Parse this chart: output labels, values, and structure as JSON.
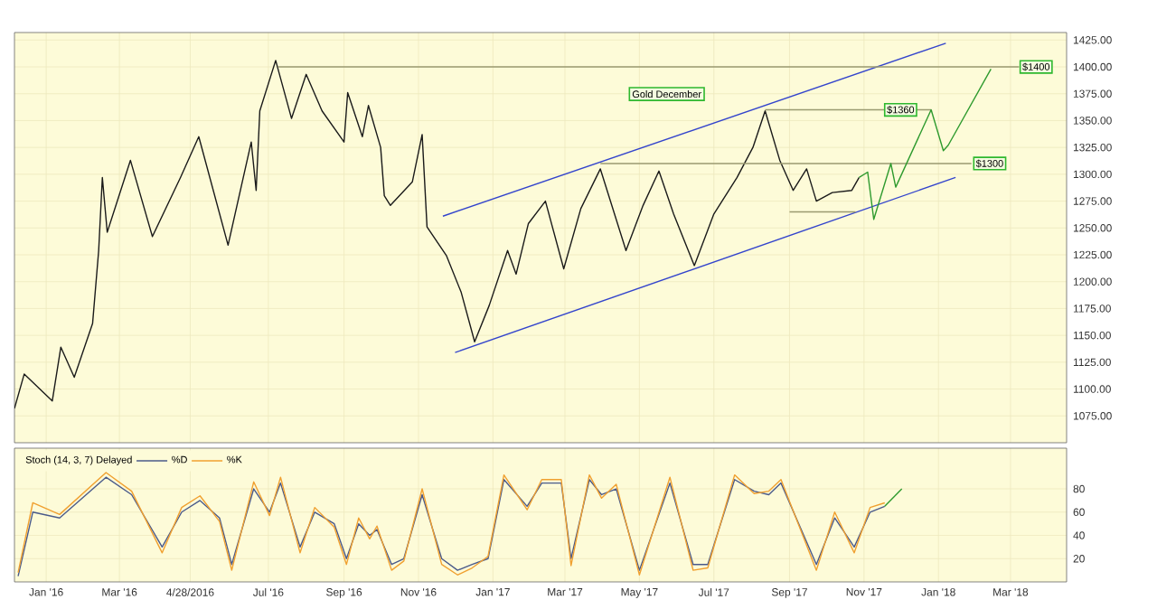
{
  "chart_data": [
    {
      "type": "line",
      "annotations": [
        "Gold  December",
        {
          "text": "$1400",
          "x": "2018-03-22",
          "y": 1400
        },
        {
          "text": "$1360",
          "x": "2017-12-01",
          "y": 1360
        },
        {
          "text": "$1300",
          "x": "2018-02-12",
          "y": 1310
        }
      ],
      "series": [
        {
          "color": "#1a1a1a",
          "x": [
            "2015-12-06",
            "2015-12-14",
            "2016-01-06",
            "2016-01-13",
            "2016-01-24",
            "2016-02-08",
            "2016-02-13",
            "2016-02-16",
            "2016-02-20",
            "2016-03-10",
            "2016-03-28",
            "2016-04-20",
            "2016-05-05",
            "2016-05-29",
            "2016-06-17",
            "2016-06-21",
            "2016-06-24",
            "2016-07-07",
            "2016-07-20",
            "2016-08-01",
            "2016-08-14",
            "2016-09-01",
            "2016-09-04",
            "2016-09-16",
            "2016-09-21",
            "2016-10-01",
            "2016-10-04",
            "2016-10-09",
            "2016-10-27",
            "2016-11-04",
            "2016-11-08",
            "2016-11-24",
            "2016-12-06",
            "2016-12-17",
            "2016-12-29",
            "2017-01-13",
            "2017-01-20",
            "2017-01-30",
            "2017-02-13",
            "2017-02-28",
            "2017-03-14",
            "2017-03-30",
            "2017-04-20",
            "2017-05-04",
            "2017-05-17",
            "2017-05-29",
            "2017-06-15",
            "2017-07-01",
            "2017-07-20",
            "2017-08-02",
            "2017-08-12",
            "2017-08-24",
            "2017-09-04",
            "2017-09-15",
            "2017-09-23",
            "2017-10-06",
            "2017-10-22",
            "2017-10-28"
          ],
          "values": [
            1082,
            1114,
            1089,
            1139,
            1111,
            1161,
            1229,
            1297,
            1246,
            1313,
            1242,
            1297,
            1335,
            1234,
            1330,
            1285,
            1359,
            1406,
            1352,
            1393,
            1359,
            1330,
            1376,
            1335,
            1364,
            1325,
            1280,
            1271,
            1293,
            1337,
            1251,
            1224,
            1190,
            1144,
            1178,
            1229,
            1207,
            1254,
            1275,
            1212,
            1268,
            1305,
            1229,
            1271,
            1303,
            1263,
            1215,
            1263,
            1297,
            1325,
            1359,
            1313,
            1285,
            1305,
            1275,
            1283,
            1285,
            1297
          ]
        },
        {
          "color": "#3344cc",
          "x": [
            "2016-11-21",
            "2018-01-07"
          ],
          "values": [
            1261,
            1422
          ]
        },
        {
          "color": "#3344cc",
          "x": [
            "2016-12-01",
            "2018-01-15"
          ],
          "values": [
            1134,
            1297
          ]
        },
        {
          "color": "#9a9a70",
          "x": [
            "2016-07-09",
            "2018-03-08"
          ],
          "values": [
            1400,
            1400
          ]
        },
        {
          "color": "#9a9a70",
          "x": [
            "2017-08-12",
            "2017-12-26"
          ],
          "values": [
            1360,
            1360
          ]
        },
        {
          "color": "#9a9a70",
          "x": [
            "2017-03-30",
            "2018-01-28"
          ],
          "values": [
            1310,
            1310
          ]
        },
        {
          "color": "#9a9a70",
          "x": [
            "2017-09-01",
            "2017-10-25"
          ],
          "values": [
            1265,
            1265
          ]
        },
        {
          "color": "#2e9a2e",
          "x": [
            "2017-10-28",
            "2017-11-04",
            "2017-11-09",
            "2017-11-23",
            "2017-11-27",
            "2017-12-26",
            "2018-01-05",
            "2018-01-09",
            "2018-02-13"
          ],
          "values": [
            1297,
            1302,
            1258,
            1310,
            1288,
            1360,
            1322,
            1327,
            1398
          ]
        }
      ],
      "xlim": [
        "2015-12-06",
        "2018-04-16"
      ],
      "xticks": [
        {
          "value": "2016-01-01",
          "label": null
        },
        {
          "value": "2016-03-01",
          "label": null
        },
        {
          "value": "2016-04-28",
          "label": null
        },
        {
          "value": "2016-07-01",
          "label": null
        },
        {
          "value": "2016-09-01",
          "label": null
        },
        {
          "value": "2016-11-01",
          "label": null
        },
        {
          "value": "2017-01-01",
          "label": null
        },
        {
          "value": "2017-03-01",
          "label": null
        },
        {
          "value": "2017-05-01",
          "label": null
        },
        {
          "value": "2017-07-01",
          "label": null
        },
        {
          "value": "2017-09-01",
          "label": null
        },
        {
          "value": "2017-11-01",
          "label": null
        },
        {
          "value": "2018-01-01",
          "label": null
        },
        {
          "value": "2018-03-01",
          "label": null
        }
      ],
      "ylim": [
        1050,
        1432
      ],
      "yticks": [
        {
          "value": 1075,
          "label": "1075.00"
        },
        {
          "value": 1100,
          "label": "1100.00"
        },
        {
          "value": 1125,
          "label": "1125.00"
        },
        {
          "value": 1150,
          "label": "1150.00"
        },
        {
          "value": 1175,
          "label": "1175.00"
        },
        {
          "value": 1200,
          "label": "1200.00"
        },
        {
          "value": 1225,
          "label": "1225.00"
        },
        {
          "value": 1250,
          "label": "1250.00"
        },
        {
          "value": 1275,
          "label": "1275.00"
        },
        {
          "value": 1300,
          "label": "1300.00"
        },
        {
          "value": 1325,
          "label": "1325.00"
        },
        {
          "value": 1350,
          "label": "1350.00"
        },
        {
          "value": 1375,
          "label": "1375.00"
        },
        {
          "value": 1400,
          "label": "1400.00"
        },
        {
          "value": 1425,
          "label": "1425.00"
        }
      ],
      "tick_labels": "y",
      "grid": true
    },
    {
      "type": "line",
      "legend_title": "Stoch (14, 3, 7) Delayed",
      "legend": "top left",
      "x": [
        "2015-12-09",
        "2015-12-21",
        "2016-01-12",
        "2016-02-19",
        "2016-03-11",
        "2016-04-05",
        "2016-04-21",
        "2016-05-06",
        "2016-05-22",
        "2016-06-01",
        "2016-06-19",
        "2016-07-02",
        "2016-07-11",
        "2016-07-27",
        "2016-08-08",
        "2016-08-24",
        "2016-09-03",
        "2016-09-13",
        "2016-09-22",
        "2016-09-28",
        "2016-10-10",
        "2016-10-20",
        "2016-11-04",
        "2016-11-20",
        "2016-12-03",
        "2016-12-15",
        "2016-12-28",
        "2017-01-10",
        "2017-01-29",
        "2017-02-10",
        "2017-02-26",
        "2017-03-06",
        "2017-03-21",
        "2017-03-31",
        "2017-04-12",
        "2017-05-01",
        "2017-05-26",
        "2017-06-14",
        "2017-06-26",
        "2017-07-18",
        "2017-08-03",
        "2017-08-15",
        "2017-08-25",
        "2017-09-23",
        "2017-10-08",
        "2017-10-24",
        "2017-11-06",
        "2017-11-18"
      ],
      "series": [
        {
          "name": "%D",
          "color": "#4a5a8a",
          "values": [
            5,
            60,
            55,
            90,
            75,
            30,
            60,
            70,
            55,
            15,
            80,
            60,
            85,
            30,
            60,
            50,
            20,
            50,
            40,
            45,
            15,
            20,
            75,
            20,
            10,
            15,
            20,
            88,
            65,
            85,
            85,
            20,
            88,
            75,
            80,
            10,
            85,
            15,
            15,
            88,
            78,
            75,
            85,
            15,
            55,
            30,
            60,
            65
          ]
        },
        {
          "name": "%K",
          "color": "#f0a030",
          "values": [
            8,
            68,
            58,
            94,
            78,
            25,
            64,
            74,
            52,
            10,
            86,
            57,
            90,
            25,
            64,
            47,
            15,
            55,
            37,
            48,
            10,
            18,
            80,
            15,
            6,
            12,
            22,
            92,
            62,
            88,
            88,
            14,
            92,
            72,
            84,
            6,
            90,
            10,
            12,
            92,
            76,
            78,
            88,
            10,
            60,
            25,
            64,
            68
          ]
        },
        {
          "color": "#2e9a2e",
          "x": [
            "2017-11-18",
            "2017-12-02"
          ],
          "values": [
            65,
            80
          ]
        }
      ],
      "xlim": [
        "2015-12-06",
        "2018-04-16"
      ],
      "xticks": [
        {
          "value": "2016-01-01",
          "label": "Jan '16"
        },
        {
          "value": "2016-03-01",
          "label": "Mar '16"
        },
        {
          "value": "2016-04-28",
          "label": "4/28/2016"
        },
        {
          "value": "2016-07-01",
          "label": "Jul '16"
        },
        {
          "value": "2016-09-01",
          "label": "Sep '16"
        },
        {
          "value": "2016-11-01",
          "label": "Nov '16"
        },
        {
          "value": "2017-01-01",
          "label": "Jan '17"
        },
        {
          "value": "2017-03-01",
          "label": "Mar '17"
        },
        {
          "value": "2017-05-01",
          "label": "May '17"
        },
        {
          "value": "2017-07-01",
          "label": "Jul '17"
        },
        {
          "value": "2017-09-01",
          "label": "Sep '17"
        },
        {
          "value": "2017-11-01",
          "label": "Nov '17"
        },
        {
          "value": "2018-01-01",
          "label": "Jan '18"
        },
        {
          "value": "2018-03-01",
          "label": "Mar '18"
        }
      ],
      "ylim": [
        0,
        115
      ],
      "yticks": [
        20,
        40,
        60,
        80
      ],
      "grid": true
    }
  ]
}
